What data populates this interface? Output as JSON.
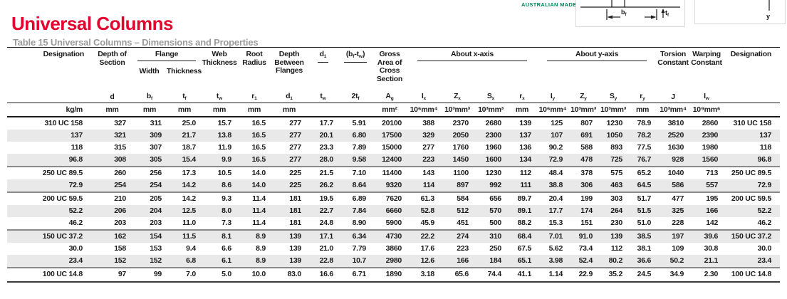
{
  "page": {
    "title": "Universal Columns",
    "subtitle": "Table 15 Universal Columns – Dimensions and Properties"
  },
  "logo": {
    "text": "AUSTRALIAN MADE"
  },
  "diagram": {
    "flange_width_label": "b_f",
    "flange_thickness_label": "t_f",
    "y_axis_label": "y"
  },
  "colors": {
    "accent_red": "#e4032e",
    "subtitle_gray": "#9b9b9b",
    "logo_green": "#00855a",
    "row_shade": "#e9e9ea"
  },
  "table": {
    "header": {
      "designation": "Designation",
      "depth_of_section": "Depth of\nSection",
      "flange": "Flange",
      "width": "Width",
      "thickness": "Thickness",
      "web_thickness": "Web\nThickness",
      "root_radius": "Root\nRadius",
      "depth_between_flanges": "Depth\nBetween\nFlanges",
      "ratio1_num": "d_1",
      "ratio2_num": "(b_f-t_w)",
      "gross_area": "Gross\nArea of\nCross\nSection",
      "about_x": "About x-axis",
      "about_y": "About y-axis",
      "torsion": "Torsion\nConstant",
      "warping": "Warping\nConstant",
      "designation_right": "Designation"
    },
    "symbols": [
      "",
      "d",
      "b_f",
      "t_f",
      "t_w",
      "r_1",
      "d_1",
      "t_w",
      "2t_f",
      "A_g",
      "I_x",
      "Z_x",
      "S_x",
      "r_x",
      "I_y",
      "Z_y",
      "S_y",
      "r_y",
      "J",
      "I_w",
      ""
    ],
    "units": [
      "kg/m",
      "mm",
      "mm",
      "mm",
      "mm",
      "mm",
      "mm",
      "",
      "",
      "mm²",
      "10⁶mm⁴",
      "10³mm³",
      "10³mm³",
      "mm",
      "10⁶mm⁴",
      "10³mm³",
      "10³mm³",
      "mm",
      "10³mm⁴",
      "10⁹mm⁶",
      ""
    ],
    "rows": [
      [
        "310 UC 158",
        "327",
        "311",
        "25.0",
        "15.7",
        "16.5",
        "277",
        "17.7",
        "5.91",
        "20100",
        "388",
        "2370",
        "2680",
        "139",
        "125",
        "807",
        "1230",
        "78.9",
        "3810",
        "2860",
        "310 UC 158"
      ],
      [
        "137",
        "321",
        "309",
        "21.7",
        "13.8",
        "16.5",
        "277",
        "20.1",
        "6.80",
        "17500",
        "329",
        "2050",
        "2300",
        "137",
        "107",
        "691",
        "1050",
        "78.2",
        "2520",
        "2390",
        "137"
      ],
      [
        "118",
        "315",
        "307",
        "18.7",
        "11.9",
        "16.5",
        "277",
        "23.3",
        "7.89",
        "15000",
        "277",
        "1760",
        "1960",
        "136",
        "90.2",
        "588",
        "893",
        "77.5",
        "1630",
        "1980",
        "118"
      ],
      [
        "96.8",
        "308",
        "305",
        "15.4",
        "9.9",
        "16.5",
        "277",
        "28.0",
        "9.58",
        "12400",
        "223",
        "1450",
        "1600",
        "134",
        "72.9",
        "478",
        "725",
        "76.7",
        "928",
        "1560",
        "96.8"
      ],
      [
        "250 UC 89.5",
        "260",
        "256",
        "17.3",
        "10.5",
        "14.0",
        "225",
        "21.5",
        "7.10",
        "11400",
        "143",
        "1100",
        "1230",
        "112",
        "48.4",
        "378",
        "575",
        "65.2",
        "1040",
        "713",
        "250 UC 89.5"
      ],
      [
        "72.9",
        "254",
        "254",
        "14.2",
        "8.6",
        "14.0",
        "225",
        "26.2",
        "8.64",
        "9320",
        "114",
        "897",
        "992",
        "111",
        "38.8",
        "306",
        "463",
        "64.5",
        "586",
        "557",
        "72.9"
      ],
      [
        "200 UC 59.5",
        "210",
        "205",
        "14.2",
        "9.3",
        "11.4",
        "181",
        "19.5",
        "6.89",
        "7620",
        "61.3",
        "584",
        "656",
        "89.7",
        "20.4",
        "199",
        "303",
        "51.7",
        "477",
        "195",
        "200 UC 59.5"
      ],
      [
        "52.2",
        "206",
        "204",
        "12.5",
        "8.0",
        "11.4",
        "181",
        "22.7",
        "7.84",
        "6660",
        "52.8",
        "512",
        "570",
        "89.1",
        "17.7",
        "174",
        "264",
        "51.5",
        "325",
        "166",
        "52.2"
      ],
      [
        "46.2",
        "203",
        "203",
        "11.0",
        "7.3",
        "11.4",
        "181",
        "24.8",
        "8.90",
        "5900",
        "45.9",
        "451",
        "500",
        "88.2",
        "15.3",
        "151",
        "230",
        "51.0",
        "228",
        "142",
        "46.2"
      ],
      [
        "150 UC 37.2",
        "162",
        "154",
        "11.5",
        "8.1",
        "8.9",
        "139",
        "17.1",
        "6.34",
        "4730",
        "22.2",
        "274",
        "310",
        "68.4",
        "7.01",
        "91.0",
        "139",
        "38.5",
        "197",
        "39.6",
        "150 UC 37.2"
      ],
      [
        "30.0",
        "158",
        "153",
        "9.4",
        "6.6",
        "8.9",
        "139",
        "21.0",
        "7.79",
        "3860",
        "17.6",
        "223",
        "250",
        "67.5",
        "5.62",
        "73.4",
        "112",
        "38.1",
        "109",
        "30.8",
        "30.0"
      ],
      [
        "23.4",
        "152",
        "152",
        "6.8",
        "6.1",
        "8.9",
        "139",
        "22.8",
        "10.7",
        "2980",
        "12.6",
        "166",
        "184",
        "65.1",
        "3.98",
        "52.4",
        "80.2",
        "36.6",
        "50.2",
        "21.1",
        "23.4"
      ],
      [
        "100 UC 14.8",
        "97",
        "99",
        "7.0",
        "5.0",
        "10.0",
        "83.0",
        "16.6",
        "6.71",
        "1890",
        "3.18",
        "65.6",
        "74.4",
        "41.1",
        "1.14",
        "22.9",
        "35.2",
        "24.5",
        "34.9",
        "2.30",
        "100 UC 14.8"
      ]
    ],
    "group_end_rows": [
      3,
      5,
      8,
      11
    ]
  }
}
